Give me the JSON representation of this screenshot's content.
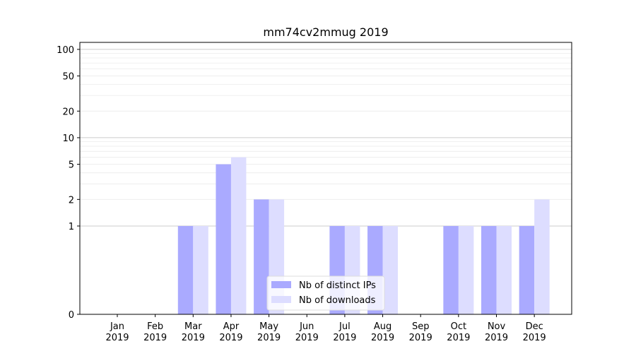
{
  "chart_data": {
    "type": "bar",
    "title": "mm74cv2mmug 2019",
    "xlabel": "",
    "ylabel": "",
    "y_scale": "symlog",
    "ylim": [
      0,
      120
    ],
    "yticks": [
      0,
      1,
      2,
      5,
      10,
      20,
      50,
      100
    ],
    "grid": true,
    "legend_position": "lower-center",
    "categories": [
      {
        "month": "Jan",
        "year": "2019"
      },
      {
        "month": "Feb",
        "year": "2019"
      },
      {
        "month": "Mar",
        "year": "2019"
      },
      {
        "month": "Apr",
        "year": "2019"
      },
      {
        "month": "May",
        "year": "2019"
      },
      {
        "month": "Jun",
        "year": "2019"
      },
      {
        "month": "Jul",
        "year": "2019"
      },
      {
        "month": "Aug",
        "year": "2019"
      },
      {
        "month": "Sep",
        "year": "2019"
      },
      {
        "month": "Oct",
        "year": "2019"
      },
      {
        "month": "Nov",
        "year": "2019"
      },
      {
        "month": "Dec",
        "year": "2019"
      }
    ],
    "series": [
      {
        "name": "Nb of distinct IPs",
        "color": "#aaaaff",
        "values": [
          0,
          0,
          1,
          5,
          2,
          0,
          1,
          1,
          0,
          1,
          1,
          1
        ]
      },
      {
        "name": "Nb of downloads",
        "color": "#ddddff",
        "values": [
          0,
          0,
          1,
          6,
          2,
          0,
          1,
          1,
          0,
          1,
          1,
          2
        ]
      }
    ]
  }
}
